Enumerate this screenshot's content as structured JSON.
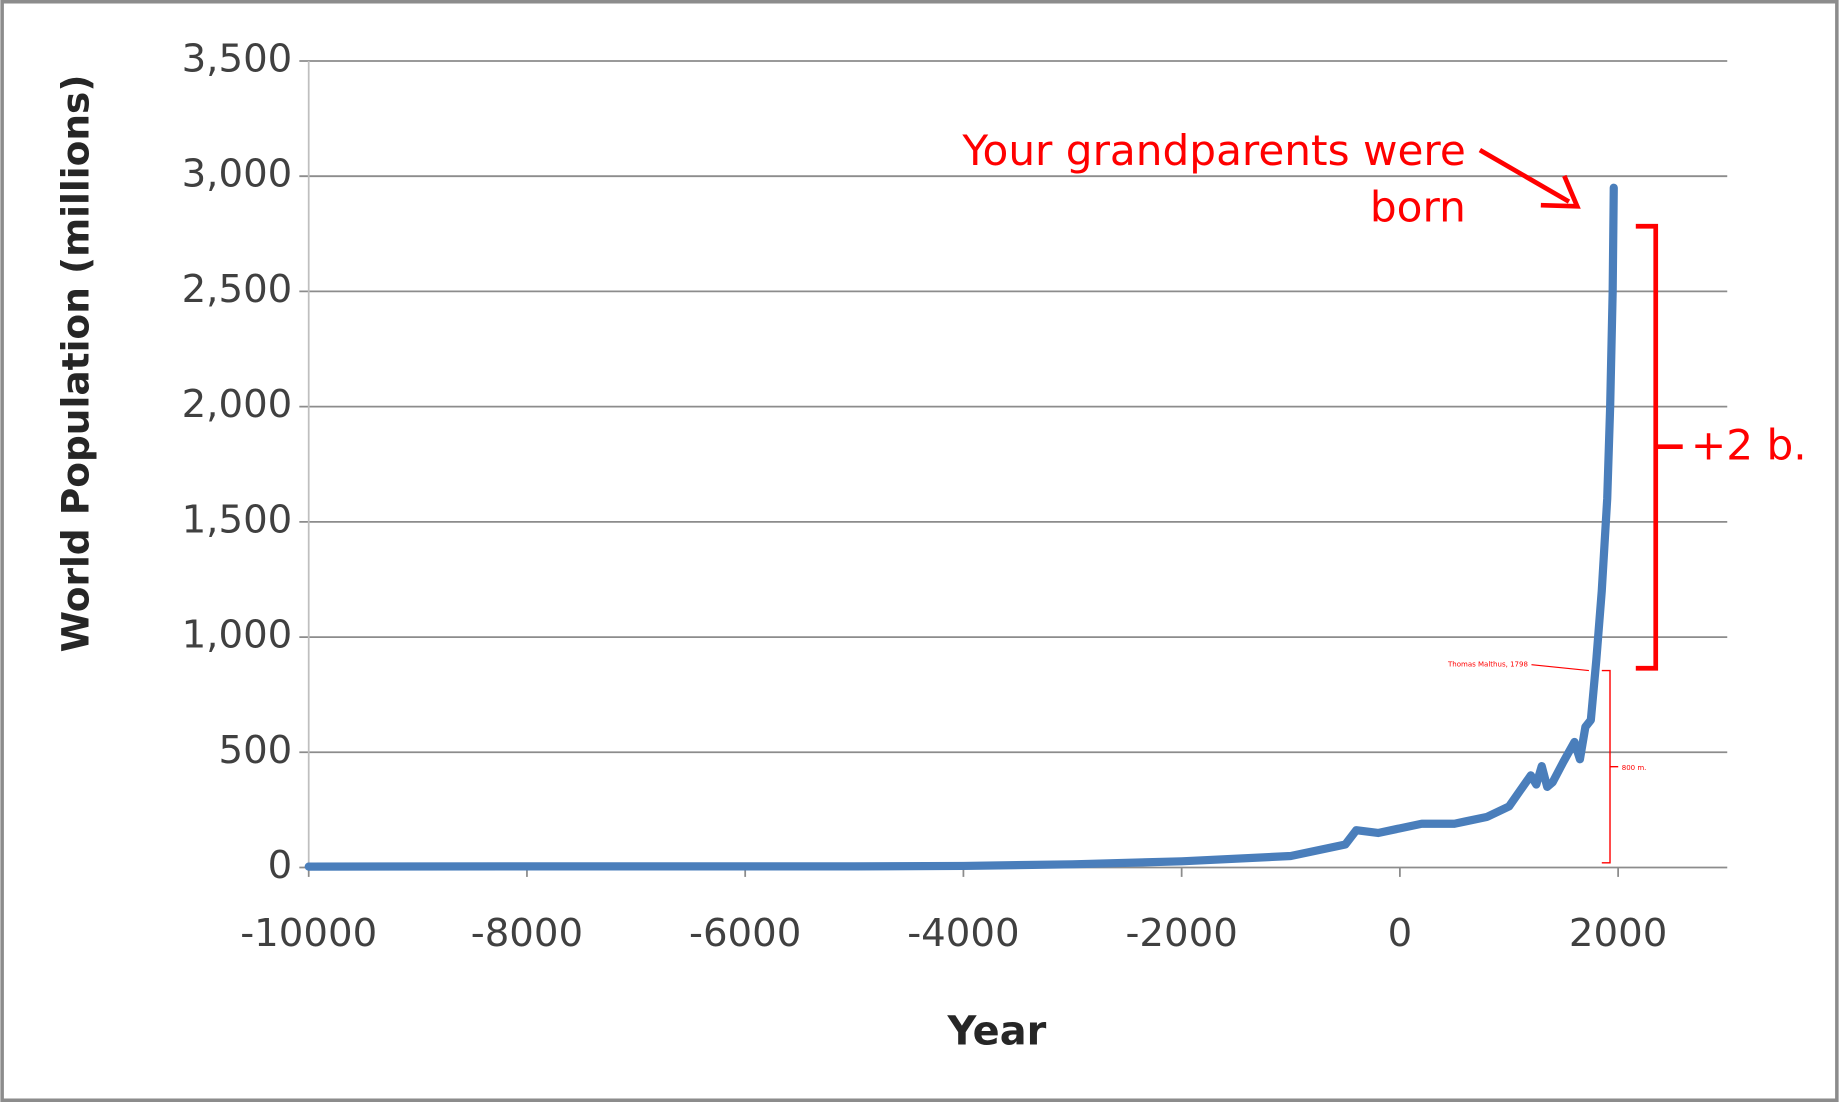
{
  "chart_data": {
    "type": "line",
    "xlabel": "Year",
    "ylabel": "World Population (millions)",
    "x": [
      -10000,
      -8000,
      -6000,
      -5000,
      -4000,
      -3000,
      -2000,
      -1000,
      -500,
      -400,
      -200,
      0,
      200,
      400,
      500,
      600,
      800,
      1000,
      1200,
      1250,
      1300,
      1350,
      1400,
      1500,
      1600,
      1650,
      1700,
      1750,
      1800,
      1850,
      1900,
      1927,
      1950,
      1960
    ],
    "values": [
      4,
      5,
      5,
      5,
      7,
      14,
      27,
      50,
      100,
      162,
      150,
      170,
      190,
      190,
      190,
      200,
      220,
      265,
      400,
      360,
      440,
      350,
      370,
      460,
      545,
      470,
      610,
      640,
      900,
      1200,
      1600,
      2000,
      2500,
      2950
    ],
    "color": "#4a7ebb",
    "xlim": [
      -10000,
      3000
    ],
    "xticks": [
      -10000,
      -8000,
      -6000,
      -4000,
      -2000,
      0,
      2000
    ],
    "ylim": [
      0,
      3500
    ],
    "yticks": [
      0,
      500,
      {
        "value": 1000,
        "label": "1,000"
      },
      {
        "value": 1500,
        "label": "1,500"
      },
      {
        "value": 2000,
        "label": "2,000"
      },
      {
        "value": 2500,
        "label": "2,500"
      },
      {
        "value": 3000,
        "label": "3,000"
      },
      {
        "value": 3500,
        "label": "3,500"
      }
    ],
    "grid": true,
    "annotations": [
      "Your grandparents were",
      "born",
      "+2 b.",
      "Thomas Malthus, 1798",
      "800 m."
    ]
  }
}
